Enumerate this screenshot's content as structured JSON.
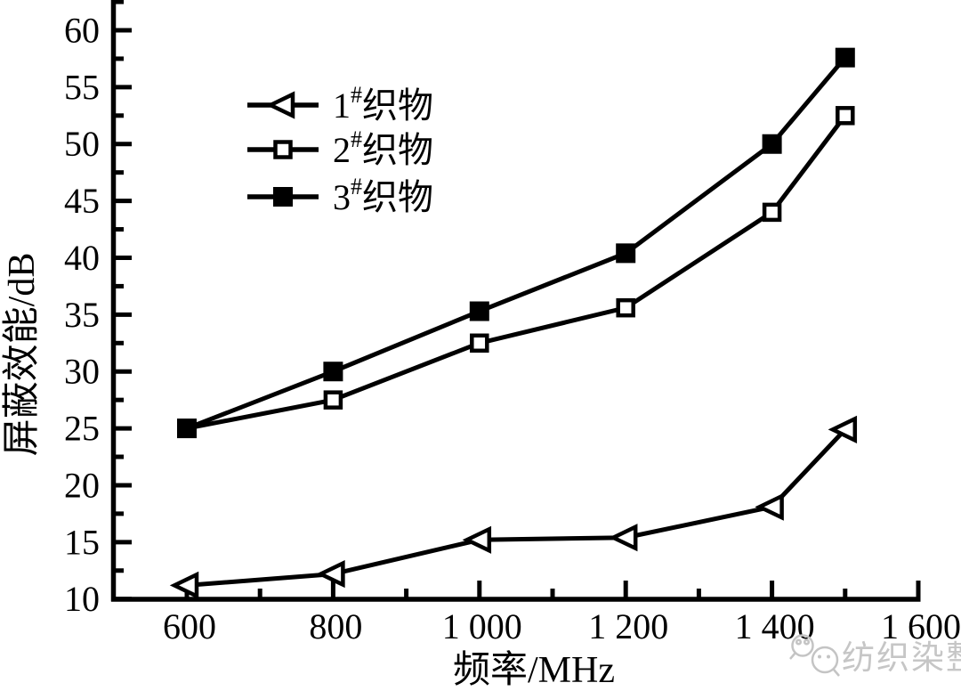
{
  "chart_data": {
    "type": "line",
    "title": "",
    "xlabel": "频率/MHz",
    "ylabel": "屏蔽效能/dB",
    "x": [
      600,
      800,
      1000,
      1200,
      1400,
      1500
    ],
    "series": [
      {
        "name": "1#织物",
        "marker": "open-triangle-left",
        "color": "#000000",
        "values": [
          11.2,
          12.2,
          15.2,
          15.4,
          18.1,
          24.9
        ]
      },
      {
        "name": "2#织物",
        "marker": "open-square",
        "color": "#000000",
        "values": [
          25.0,
          27.5,
          32.5,
          35.6,
          44.0,
          52.5
        ]
      },
      {
        "name": "3#织物",
        "marker": "filled-square",
        "color": "#000000",
        "values": [
          25.0,
          30.0,
          35.3,
          40.4,
          50.0,
          57.6
        ]
      }
    ],
    "x_major_ticks": [
      600,
      800,
      1000,
      1200,
      1400,
      1600
    ],
    "x_tick_labels": [
      "600",
      "800",
      "1 000",
      "1 200",
      "1 400",
      "1 600"
    ],
    "x_minor_ticks": [
      700,
      900,
      1100,
      1300,
      1500
    ],
    "y_major_ticks": [
      10,
      15,
      20,
      25,
      30,
      35,
      40,
      45,
      50,
      55,
      60
    ],
    "y_tick_labels": [
      "10",
      "15",
      "20",
      "25",
      "30",
      "35",
      "40",
      "45",
      "50",
      "55",
      "60"
    ],
    "y_minor_ticks": [
      12.5,
      17.5,
      22.5,
      27.5,
      32.5,
      37.5,
      42.5,
      47.5,
      52.5,
      57.5,
      62.5
    ],
    "xlim": [
      500,
      1600
    ],
    "ylim": [
      10,
      62.5
    ],
    "grid": false,
    "legend_position": "upper-left-inside",
    "axis_color": "#000000",
    "background": "#ffffff"
  },
  "watermark": {
    "icon": "wechat-icon",
    "text": "纺织染整",
    "color": "#c6c6c6"
  }
}
